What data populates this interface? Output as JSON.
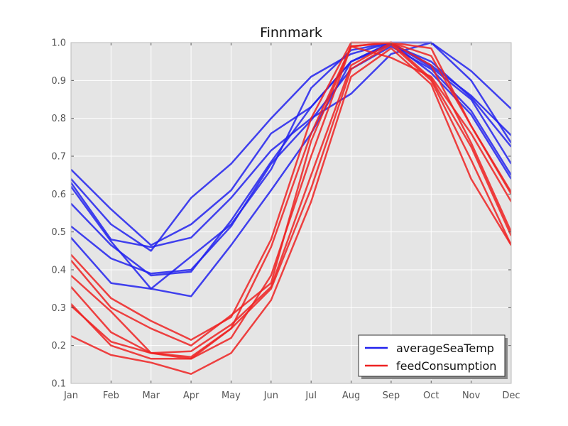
{
  "chart_data": {
    "type": "line",
    "title": "Finnmark",
    "xlabel": "",
    "ylabel": "",
    "categories": [
      "Jan",
      "Feb",
      "Mar",
      "Apr",
      "May",
      "Jun",
      "Jul",
      "Aug",
      "Sep",
      "Oct",
      "Nov",
      "Dec"
    ],
    "ylim": [
      0.1,
      1.0
    ],
    "yticks": [
      "0.1",
      "0.2",
      "0.3",
      "0.4",
      "0.5",
      "0.6",
      "0.7",
      "0.8",
      "0.9",
      "1.0"
    ],
    "grid": true,
    "legend_position": "bottom-right",
    "legend": [
      {
        "label": "averageSeaTemp",
        "color": "#2222ee"
      },
      {
        "label": "feedConsumption",
        "color": "#ee2222"
      }
    ],
    "series": [
      {
        "group": "averageSeaTemp",
        "values": [
          0.665,
          0.56,
          0.465,
          0.52,
          0.61,
          0.76,
          0.83,
          0.95,
          1.0,
          1.0,
          0.925,
          0.825
        ]
      },
      {
        "group": "averageSeaTemp",
        "values": [
          0.64,
          0.52,
          0.45,
          0.59,
          0.68,
          0.8,
          0.91,
          0.97,
          1.0,
          0.94,
          0.86,
          0.755
        ]
      },
      {
        "group": "averageSeaTemp",
        "values": [
          0.63,
          0.48,
          0.46,
          0.485,
          0.59,
          0.715,
          0.8,
          0.865,
          0.97,
          1.0,
          0.9,
          0.735
        ]
      },
      {
        "group": "averageSeaTemp",
        "values": [
          0.575,
          0.465,
          0.385,
          0.395,
          0.53,
          0.685,
          0.83,
          0.95,
          1.0,
          0.935,
          0.85,
          0.68
        ]
      },
      {
        "group": "averageSeaTemp",
        "values": [
          0.515,
          0.43,
          0.39,
          0.4,
          0.515,
          0.68,
          0.795,
          0.93,
          0.99,
          0.93,
          0.82,
          0.65
        ]
      },
      {
        "group": "averageSeaTemp",
        "values": [
          0.485,
          0.365,
          0.35,
          0.435,
          0.52,
          0.665,
          0.88,
          0.98,
          1.0,
          0.92,
          0.81,
          0.64
        ]
      },
      {
        "group": "averageSeaTemp",
        "values": [
          0.62,
          0.475,
          0.35,
          0.33,
          0.465,
          0.61,
          0.76,
          0.95,
          0.995,
          0.95,
          0.855,
          0.725
        ]
      },
      {
        "group": "feedConsumption",
        "values": [
          0.44,
          0.325,
          0.265,
          0.215,
          0.275,
          0.48,
          0.8,
          1.0,
          1.0,
          0.985,
          0.78,
          0.605
        ]
      },
      {
        "group": "feedConsumption",
        "values": [
          0.425,
          0.3,
          0.245,
          0.2,
          0.28,
          0.365,
          0.74,
          0.99,
          1.0,
          0.94,
          0.735,
          0.5
        ]
      },
      {
        "group": "feedConsumption",
        "values": [
          0.385,
          0.29,
          0.18,
          0.185,
          0.255,
          0.355,
          0.65,
          0.94,
          1.0,
          0.905,
          0.725,
          0.49
        ]
      },
      {
        "group": "feedConsumption",
        "values": [
          0.355,
          0.235,
          0.18,
          0.17,
          0.245,
          0.35,
          0.615,
          0.93,
          0.995,
          0.9,
          0.69,
          0.465
        ]
      },
      {
        "group": "feedConsumption",
        "values": [
          0.305,
          0.21,
          0.18,
          0.165,
          0.22,
          0.385,
          0.7,
          0.99,
          0.96,
          0.91,
          0.76,
          0.58
        ]
      },
      {
        "group": "feedConsumption",
        "values": [
          0.31,
          0.2,
          0.165,
          0.165,
          0.245,
          0.46,
          0.76,
          0.99,
          1.0,
          0.965,
          0.78,
          0.6
        ]
      },
      {
        "group": "feedConsumption",
        "values": [
          0.225,
          0.175,
          0.155,
          0.125,
          0.18,
          0.32,
          0.58,
          0.91,
          0.985,
          0.89,
          0.64,
          0.465
        ]
      }
    ]
  }
}
